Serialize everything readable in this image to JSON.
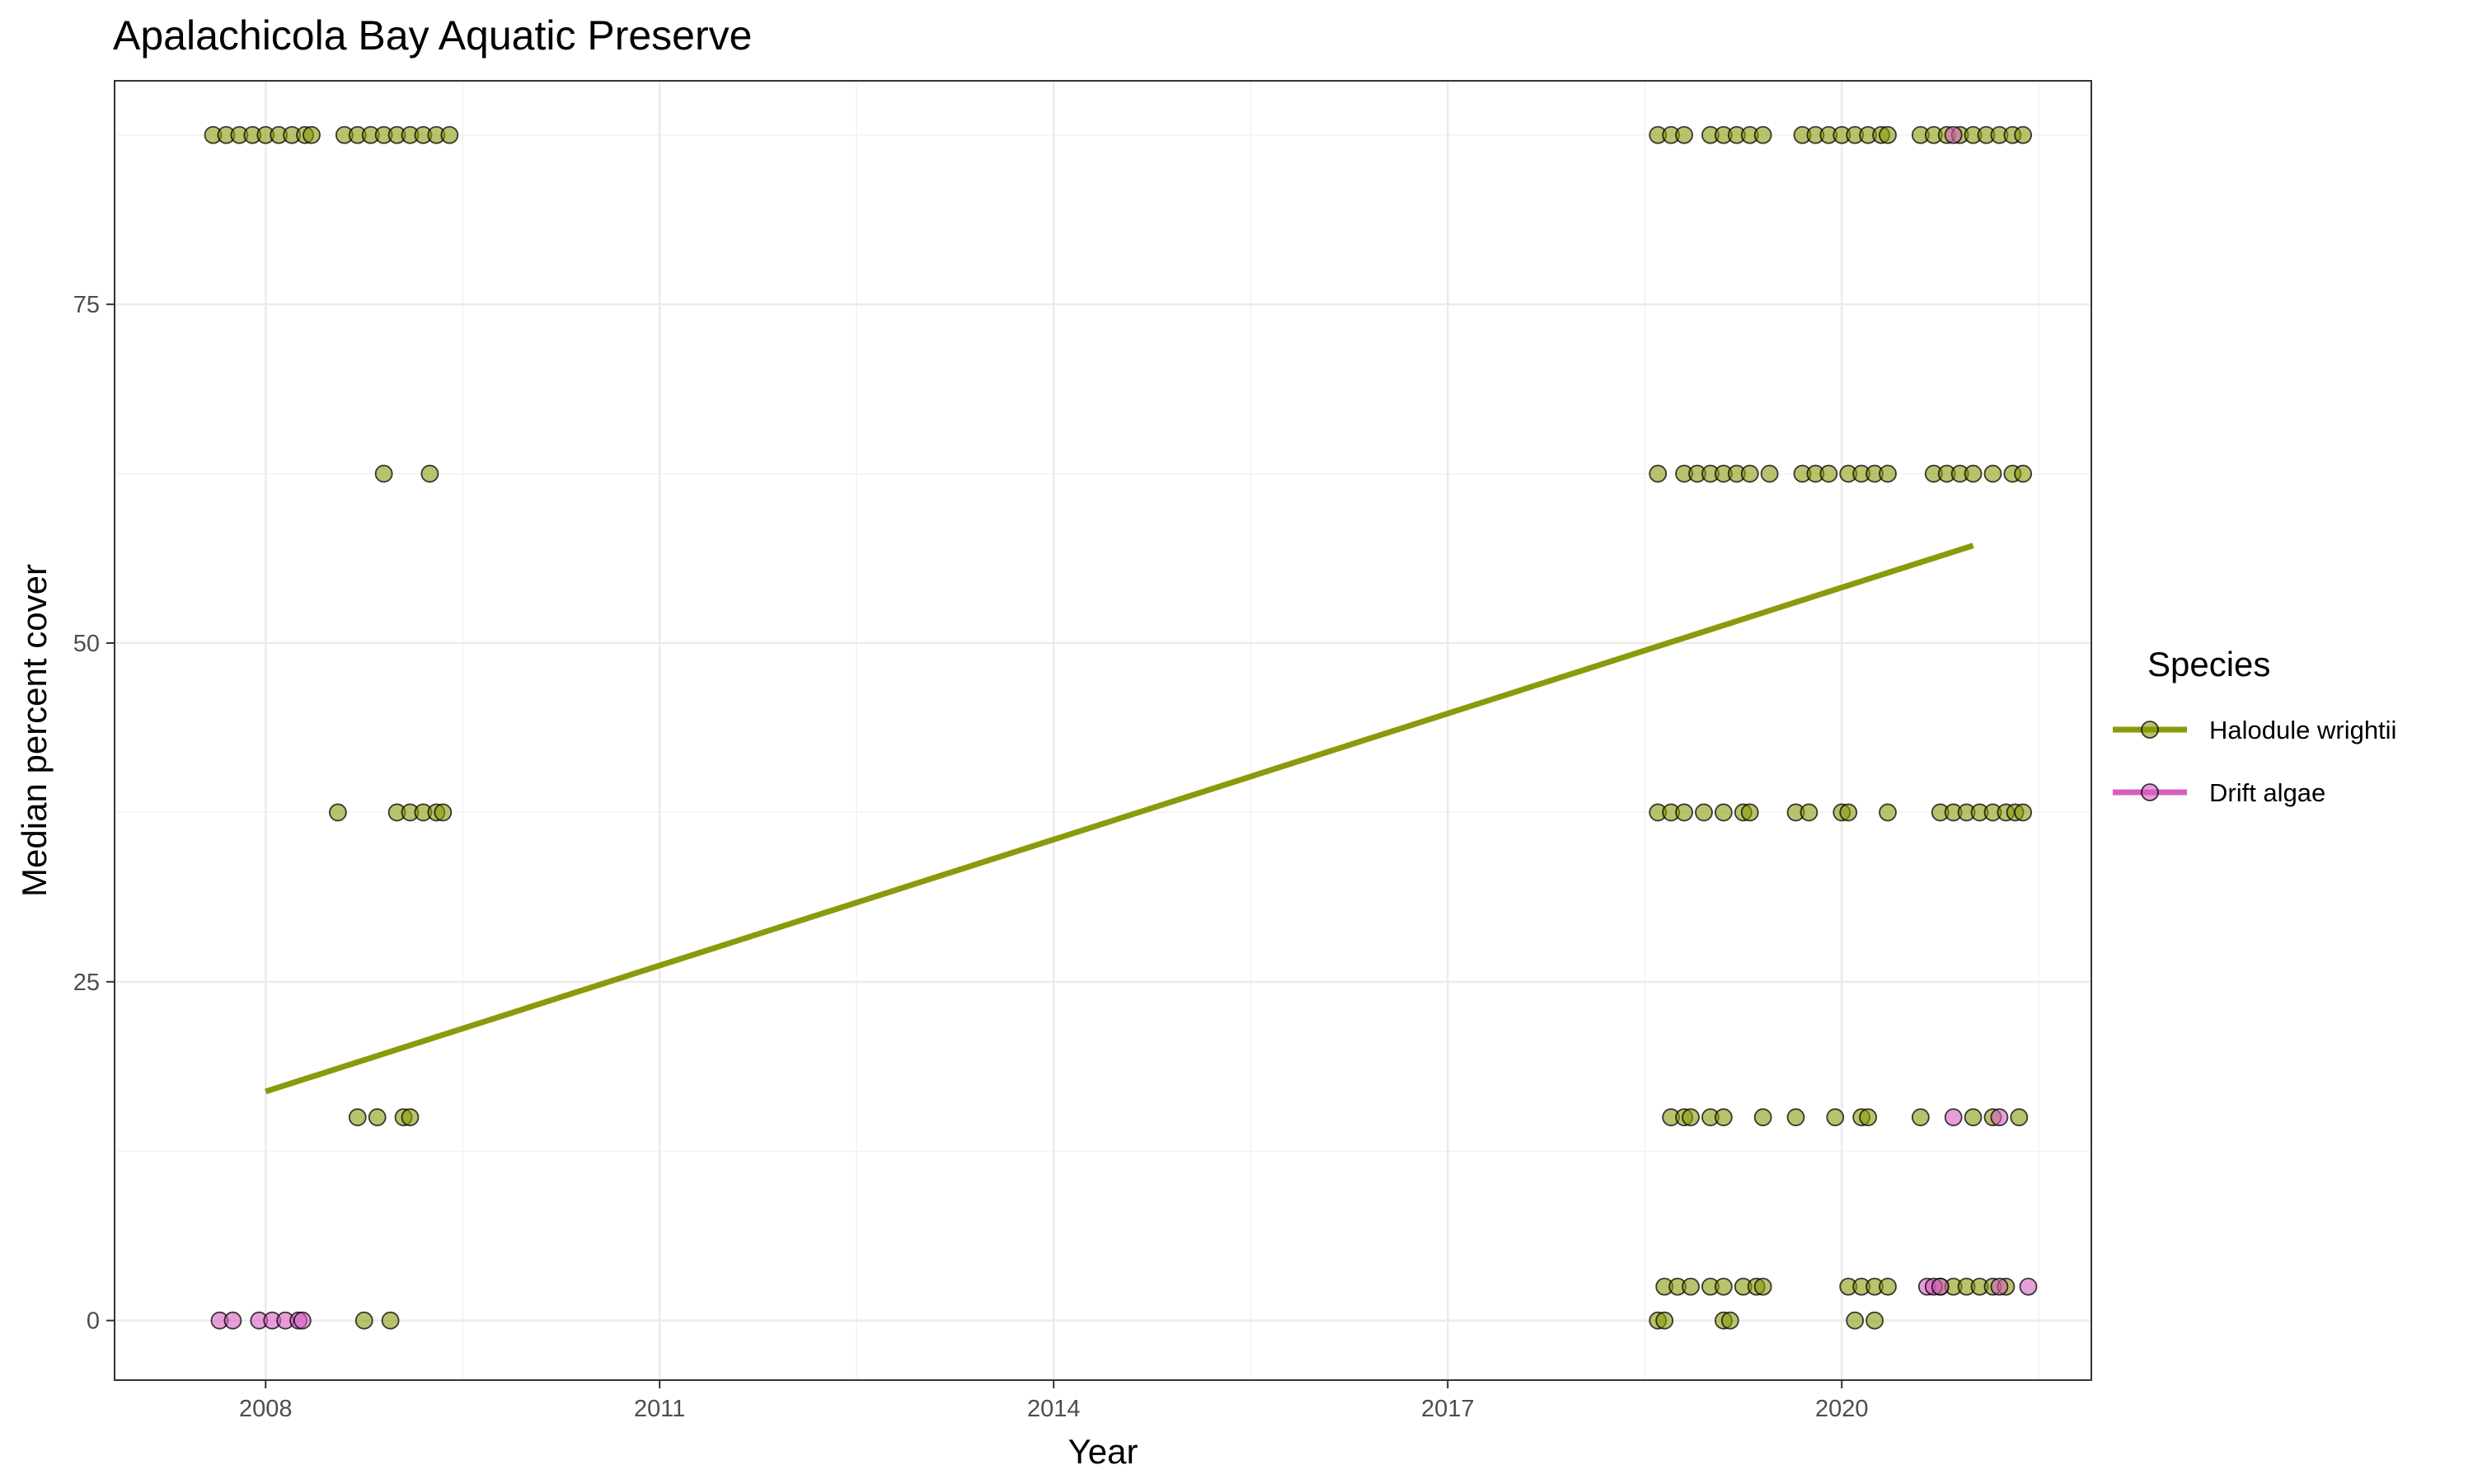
{
  "chart_data": {
    "type": "scatter",
    "title": "Apalachicola Bay Aquatic Preserve",
    "xlabel": "Year",
    "ylabel": "Median percent cover",
    "xlim": [
      2006.85,
      2021.9
    ],
    "ylim": [
      -4.4,
      91.5
    ],
    "x_ticks": [
      2008,
      2011,
      2014,
      2017,
      2020
    ],
    "y_ticks": [
      0,
      25,
      50,
      75
    ],
    "grid": true,
    "legend": {
      "title": "Species",
      "position": "right"
    },
    "series": [
      {
        "name": "Halodule wrightii",
        "color": "#8a9a0b",
        "trend": {
          "x": [
            2008.0,
            2021.0
          ],
          "y": [
            16.9,
            57.2
          ]
        },
        "points": [
          [
            2007.6,
            87.5
          ],
          [
            2007.7,
            87.5
          ],
          [
            2007.8,
            87.5
          ],
          [
            2007.9,
            87.5
          ],
          [
            2008.0,
            87.5
          ],
          [
            2008.1,
            87.5
          ],
          [
            2008.2,
            87.5
          ],
          [
            2008.3,
            87.5
          ],
          [
            2008.35,
            87.5
          ],
          [
            2008.6,
            87.5
          ],
          [
            2008.7,
            87.5
          ],
          [
            2008.8,
            87.5
          ],
          [
            2008.9,
            87.5
          ],
          [
            2009.0,
            87.5
          ],
          [
            2009.1,
            87.5
          ],
          [
            2009.2,
            87.5
          ],
          [
            2009.3,
            87.5
          ],
          [
            2009.4,
            87.5
          ],
          [
            2008.9,
            62.5
          ],
          [
            2009.25,
            62.5
          ],
          [
            2008.55,
            37.5
          ],
          [
            2009.0,
            37.5
          ],
          [
            2009.1,
            37.5
          ],
          [
            2009.2,
            37.5
          ],
          [
            2009.3,
            37.5
          ],
          [
            2009.35,
            37.5
          ],
          [
            2008.7,
            15
          ],
          [
            2008.85,
            15
          ],
          [
            2009.05,
            15
          ],
          [
            2009.1,
            15
          ],
          [
            2008.75,
            0
          ],
          [
            2008.95,
            0
          ],
          [
            2018.6,
            87.5
          ],
          [
            2018.7,
            87.5
          ],
          [
            2018.8,
            87.5
          ],
          [
            2019.0,
            87.5
          ],
          [
            2019.1,
            87.5
          ],
          [
            2019.2,
            87.5
          ],
          [
            2019.3,
            87.5
          ],
          [
            2019.4,
            87.5
          ],
          [
            2019.7,
            87.5
          ],
          [
            2019.8,
            87.5
          ],
          [
            2019.9,
            87.5
          ],
          [
            2020.0,
            87.5
          ],
          [
            2020.1,
            87.5
          ],
          [
            2020.2,
            87.5
          ],
          [
            2020.3,
            87.5
          ],
          [
            2020.35,
            87.5
          ],
          [
            2020.6,
            87.5
          ],
          [
            2020.7,
            87.5
          ],
          [
            2020.8,
            87.5
          ],
          [
            2020.9,
            87.5
          ],
          [
            2021.0,
            87.5
          ],
          [
            2021.1,
            87.5
          ],
          [
            2021.2,
            87.5
          ],
          [
            2021.3,
            87.5
          ],
          [
            2021.38,
            87.5
          ],
          [
            2018.6,
            62.5
          ],
          [
            2018.8,
            62.5
          ],
          [
            2018.9,
            62.5
          ],
          [
            2019.0,
            62.5
          ],
          [
            2019.1,
            62.5
          ],
          [
            2019.2,
            62.5
          ],
          [
            2019.3,
            62.5
          ],
          [
            2019.45,
            62.5
          ],
          [
            2019.7,
            62.5
          ],
          [
            2019.8,
            62.5
          ],
          [
            2019.9,
            62.5
          ],
          [
            2020.05,
            62.5
          ],
          [
            2020.15,
            62.5
          ],
          [
            2020.25,
            62.5
          ],
          [
            2020.35,
            62.5
          ],
          [
            2020.7,
            62.5
          ],
          [
            2020.8,
            62.5
          ],
          [
            2020.9,
            62.5
          ],
          [
            2021.0,
            62.5
          ],
          [
            2021.15,
            62.5
          ],
          [
            2021.3,
            62.5
          ],
          [
            2021.38,
            62.5
          ],
          [
            2018.6,
            37.5
          ],
          [
            2018.7,
            37.5
          ],
          [
            2018.8,
            37.5
          ],
          [
            2018.95,
            37.5
          ],
          [
            2019.1,
            37.5
          ],
          [
            2019.25,
            37.5
          ],
          [
            2019.3,
            37.5
          ],
          [
            2019.65,
            37.5
          ],
          [
            2019.75,
            37.5
          ],
          [
            2020.0,
            37.5
          ],
          [
            2020.05,
            37.5
          ],
          [
            2020.35,
            37.5
          ],
          [
            2020.75,
            37.5
          ],
          [
            2020.85,
            37.5
          ],
          [
            2020.95,
            37.5
          ],
          [
            2021.05,
            37.5
          ],
          [
            2021.15,
            37.5
          ],
          [
            2021.25,
            37.5
          ],
          [
            2021.32,
            37.5
          ],
          [
            2021.38,
            37.5
          ],
          [
            2018.7,
            15
          ],
          [
            2018.8,
            15
          ],
          [
            2018.85,
            15
          ],
          [
            2019.0,
            15
          ],
          [
            2019.1,
            15
          ],
          [
            2019.4,
            15
          ],
          [
            2019.65,
            15
          ],
          [
            2019.95,
            15
          ],
          [
            2020.15,
            15
          ],
          [
            2020.2,
            15
          ],
          [
            2020.6,
            15
          ],
          [
            2021.0,
            15
          ],
          [
            2021.15,
            15
          ],
          [
            2021.35,
            15
          ],
          [
            2018.65,
            2.5
          ],
          [
            2018.75,
            2.5
          ],
          [
            2018.85,
            2.5
          ],
          [
            2019.0,
            2.5
          ],
          [
            2019.1,
            2.5
          ],
          [
            2019.25,
            2.5
          ],
          [
            2019.35,
            2.5
          ],
          [
            2019.4,
            2.5
          ],
          [
            2020.05,
            2.5
          ],
          [
            2020.15,
            2.5
          ],
          [
            2020.25,
            2.5
          ],
          [
            2020.35,
            2.5
          ],
          [
            2020.75,
            2.5
          ],
          [
            2020.85,
            2.5
          ],
          [
            2020.95,
            2.5
          ],
          [
            2021.05,
            2.5
          ],
          [
            2021.15,
            2.5
          ],
          [
            2021.25,
            2.5
          ],
          [
            2018.6,
            0
          ],
          [
            2018.65,
            0
          ],
          [
            2019.1,
            0
          ],
          [
            2019.15,
            0
          ],
          [
            2020.1,
            0
          ],
          [
            2020.25,
            0
          ]
        ]
      },
      {
        "name": "Drift algae",
        "color": "#d65fbf",
        "points": [
          [
            2007.65,
            0
          ],
          [
            2007.75,
            0
          ],
          [
            2007.95,
            0
          ],
          [
            2008.05,
            0
          ],
          [
            2008.15,
            0
          ],
          [
            2008.25,
            0
          ],
          [
            2008.28,
            0
          ],
          [
            2020.85,
            87.5
          ],
          [
            2020.85,
            15
          ],
          [
            2021.2,
            15
          ],
          [
            2020.65,
            2.5
          ],
          [
            2020.7,
            2.5
          ],
          [
            2020.75,
            2.5
          ],
          [
            2021.2,
            2.5
          ],
          [
            2021.42,
            2.5
          ]
        ]
      }
    ]
  }
}
